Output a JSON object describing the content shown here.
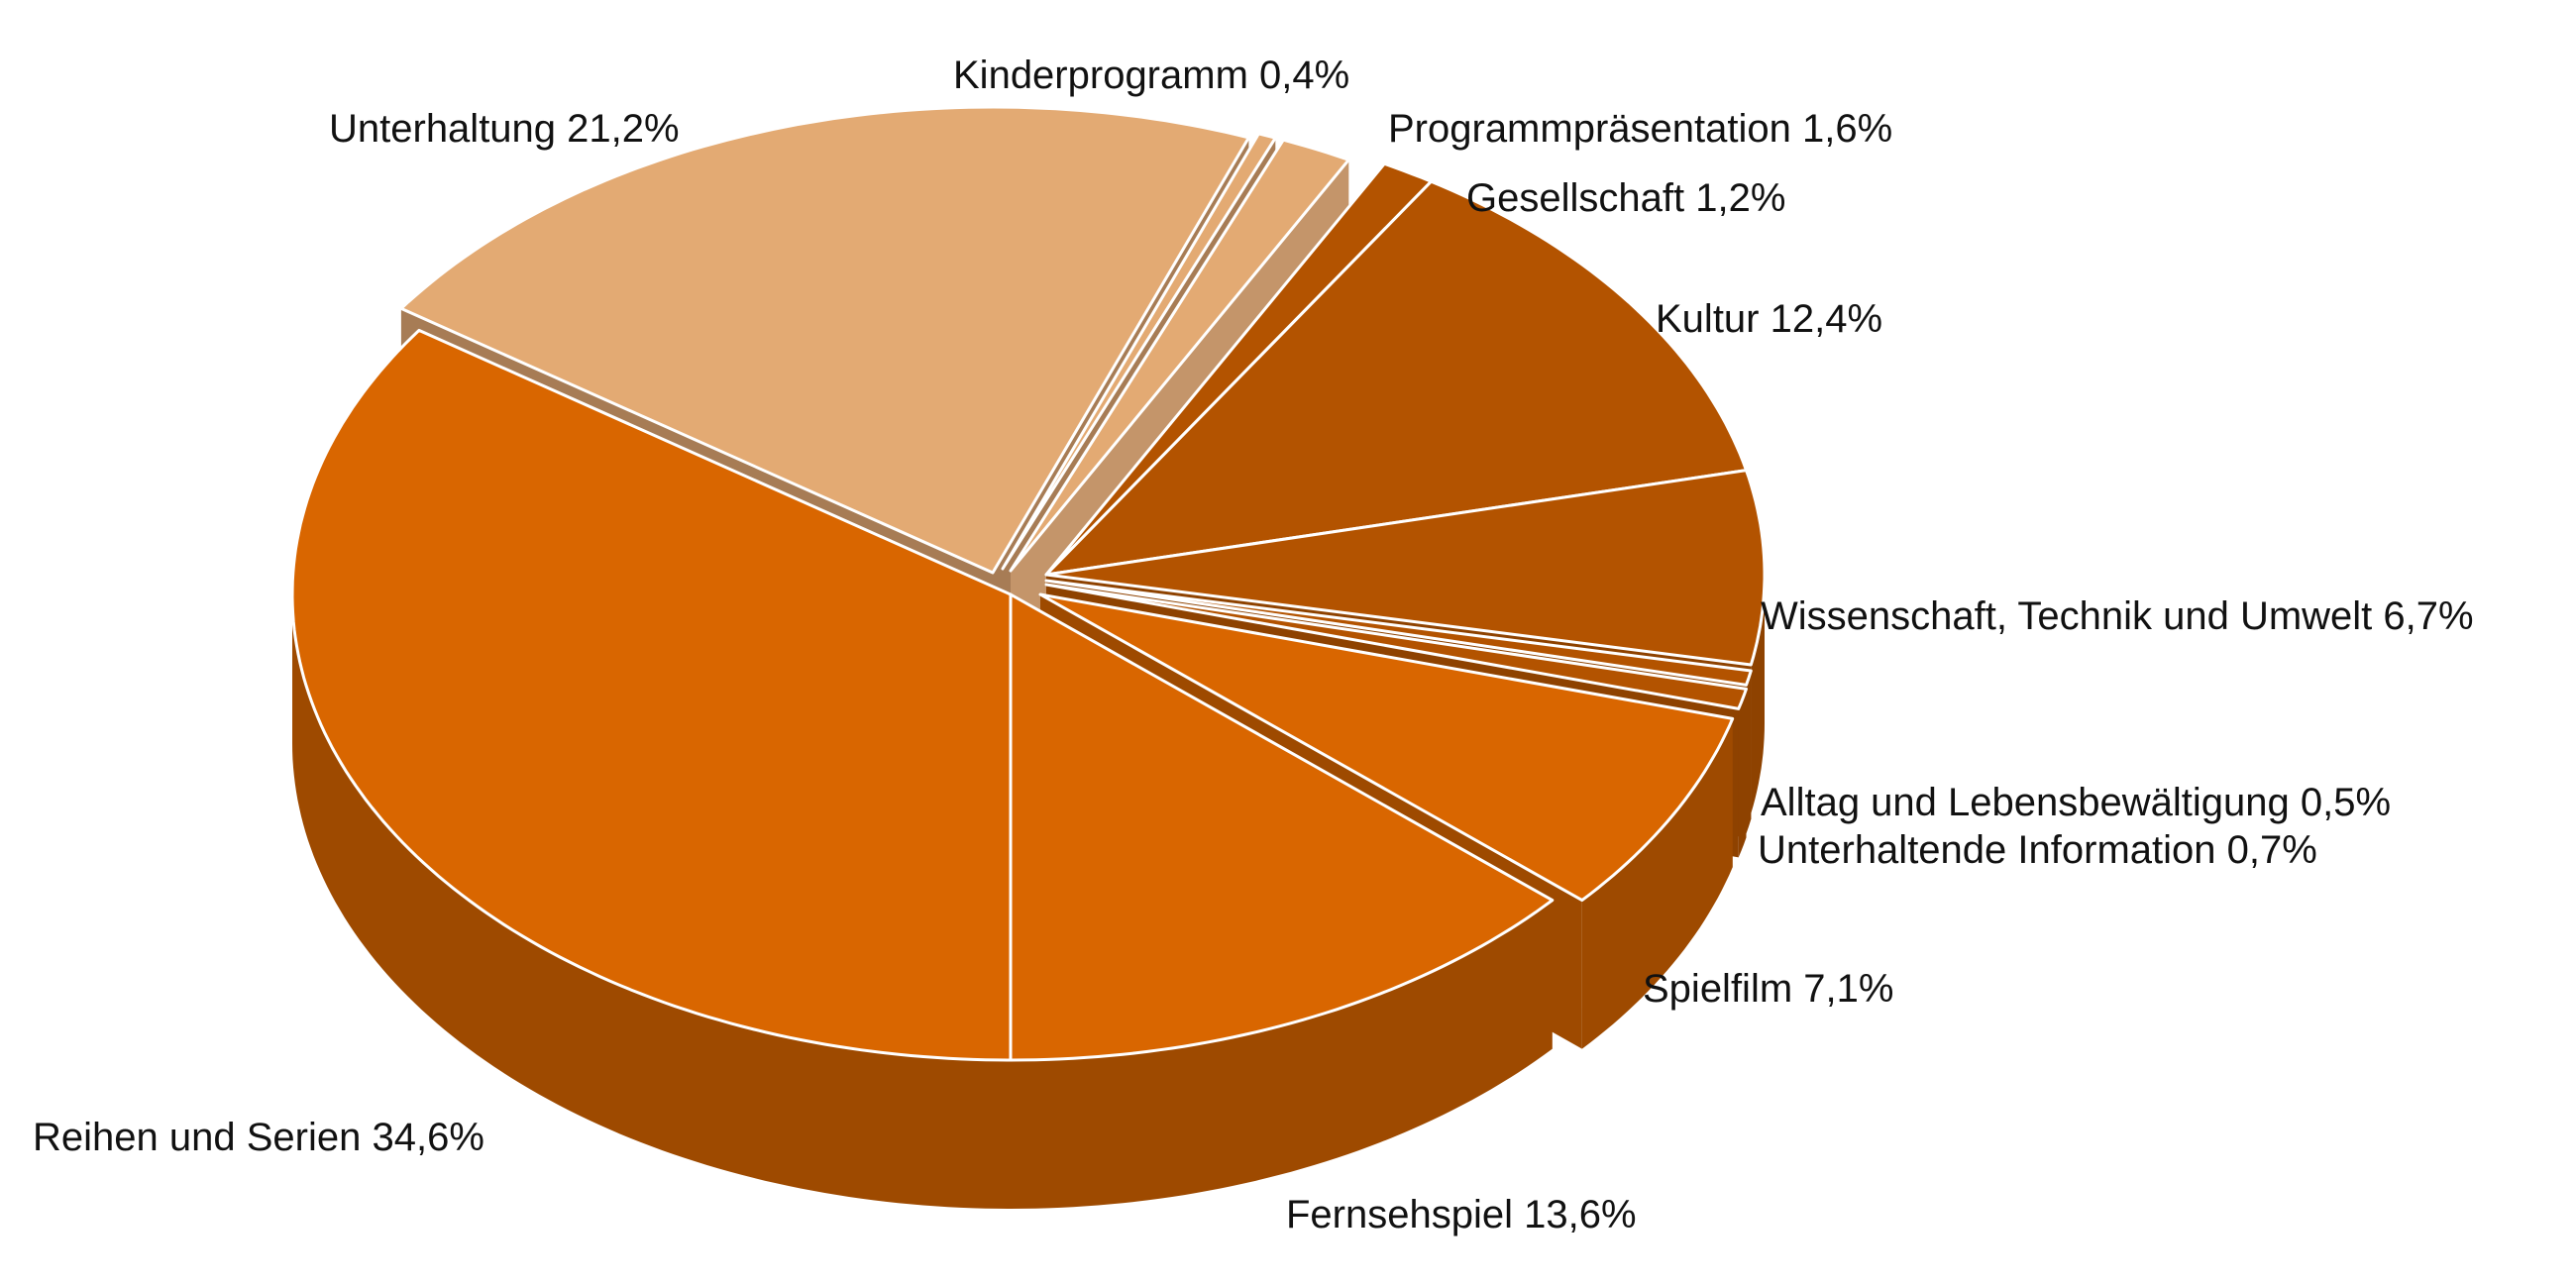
{
  "chart_data": {
    "type": "pie",
    "style": "3d-exploded",
    "title": "",
    "slices": [
      {
        "name": "Reihen und Serien",
        "value": 34.6,
        "label": "Reihen und Serien 34,6%",
        "color": "#D96600",
        "side": "#9E4A00"
      },
      {
        "name": "Unterhaltung",
        "value": 21.2,
        "label": "Unterhaltung 21,2%",
        "color": "#E3AA73",
        "side": "#A77C55"
      },
      {
        "name": "Kinderprogramm",
        "value": 0.4,
        "label": "Kinderprogramm 0,4%",
        "color": "#E3AA73",
        "side": "#A77C55"
      },
      {
        "name": "Programmpräsentation",
        "value": 1.6,
        "label": "Programmpräsentation 1,6%",
        "color": "#E3AA73",
        "side": "#C4956A"
      },
      {
        "name": "Gesellschaft",
        "value": 1.2,
        "label": "Gesellschaft 1,2%",
        "color": "#B35300",
        "side": "#8E4200"
      },
      {
        "name": "Kultur",
        "value": 12.4,
        "label": "Kultur 12,4%",
        "color": "#B35300",
        "side": "#8E4200"
      },
      {
        "name": "Wissenschaft, Technik und Umwelt",
        "value": 6.7,
        "label": "Wissenschaft, Technik und Umwelt 6,7%",
        "color": "#B35300",
        "side": "#8E4200"
      },
      {
        "name": "Alltag und Lebensbewältigung",
        "value": 0.5,
        "label": "Alltag und Lebensbewältigung 0,5%",
        "color": "#B35300",
        "side": "#8E4200"
      },
      {
        "name": "Unterhaltende Information",
        "value": 0.7,
        "label": "Unterhaltende Information 0,7%",
        "color": "#B35300",
        "side": "#8E4200"
      },
      {
        "name": "Spielfilm",
        "value": 7.1,
        "label": "Spielfilm 7,1%",
        "color": "#D96600",
        "side": "#9E4A00"
      },
      {
        "name": "Fernsehspiel",
        "value": 13.6,
        "label": "Fernsehspiel 13,6%",
        "color": "#D96600",
        "side": "#9E4A00"
      }
    ]
  }
}
